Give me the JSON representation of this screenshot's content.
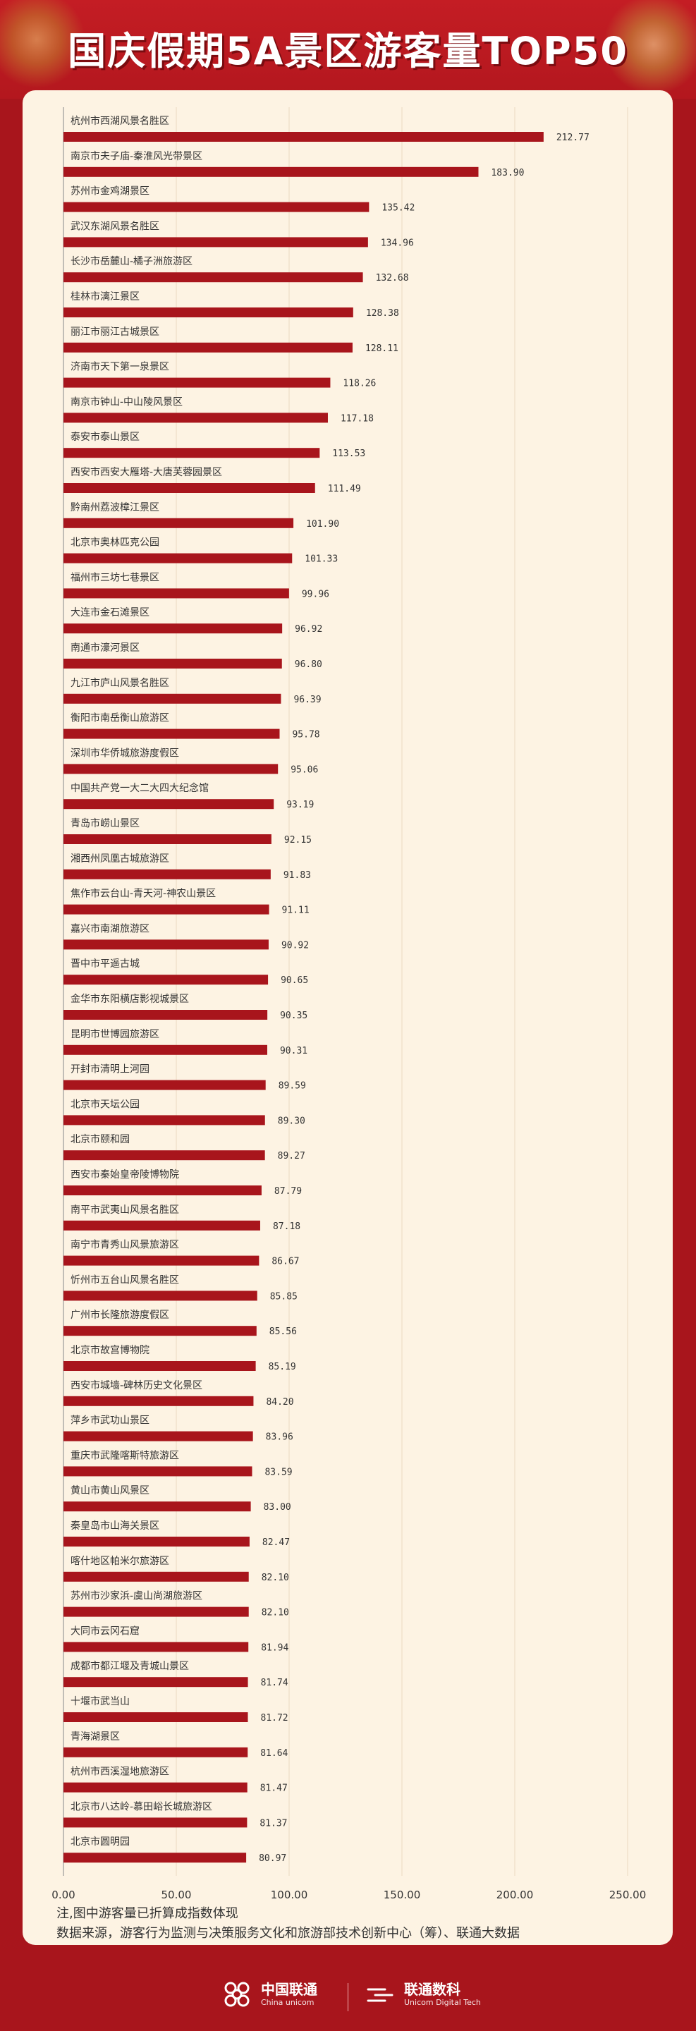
{
  "title": "国庆假期5A景区游客量TOP50",
  "notes": {
    "line1": "注,图中游客量已折算成指数体现",
    "line2": "数据来源，游客行为监测与决策服务文化和旅游部技术创新中心（筹）、联通大数据"
  },
  "footer": {
    "logo1_cn": "中国联通",
    "logo1_en": "China unicom",
    "logo2_cn": "联通数科",
    "logo2_en": "Unicom Digital Tech"
  },
  "colors": {
    "bar": "#a8151c",
    "background": "#a8151c",
    "panel": "#fdf3e3"
  },
  "chart_data": {
    "type": "bar",
    "orientation": "horizontal",
    "title": "国庆假期5A景区游客量TOP50",
    "xlim": [
      0,
      250
    ],
    "xticks": [
      "0.00",
      "50.00",
      "100.00",
      "150.00",
      "200.00",
      "250.00"
    ],
    "grid": "vertical",
    "categories": [
      "杭州市西湖风景名胜区",
      "南京市夫子庙-秦淮风光带景区",
      "苏州市金鸡湖景区",
      "武汉东湖风景名胜区",
      "长沙市岳麓山-橘子洲旅游区",
      "桂林市漓江景区",
      "丽江市丽江古城景区",
      "济南市天下第一泉景区",
      "南京市钟山-中山陵风景区",
      "泰安市泰山景区",
      "西安市西安大雁塔-大唐芙蓉园景区",
      "黔南州荔波樟江景区",
      "北京市奥林匹克公园",
      "福州市三坊七巷景区",
      "大连市金石滩景区",
      "南通市濠河景区",
      "九江市庐山风景名胜区",
      "衡阳市南岳衡山旅游区",
      "深圳市华侨城旅游度假区",
      "中国共产党一大二大四大纪念馆",
      "青岛市崂山景区",
      "湘西州凤凰古城旅游区",
      "焦作市云台山-青天河-神农山景区",
      "嘉兴市南湖旅游区",
      "晋中市平遥古城",
      "金华市东阳横店影视城景区",
      "昆明市世博园旅游区",
      "开封市清明上河园",
      "北京市天坛公园",
      "北京市颐和园",
      "西安市秦始皇帝陵博物院",
      "南平市武夷山风景名胜区",
      "南宁市青秀山风景旅游区",
      "忻州市五台山风景名胜区",
      "广州市长隆旅游度假区",
      "北京市故宫博物院",
      "西安市城墙-碑林历史文化景区",
      "萍乡市武功山景区",
      "重庆市武隆喀斯特旅游区",
      "黄山市黄山风景区",
      "秦皇岛市山海关景区",
      "喀什地区帕米尔旅游区",
      "苏州市沙家浜-虞山尚湖旅游区",
      "大同市云冈石窟",
      "成都市都江堰及青城山景区",
      "十堰市武当山",
      "青海湖景区",
      "杭州市西溪湿地旅游区",
      "北京市八达岭-慕田峪长城旅游区",
      "北京市圆明园"
    ],
    "values": [
      212.77,
      183.9,
      135.42,
      134.96,
      132.68,
      128.38,
      128.11,
      118.26,
      117.18,
      113.53,
      111.49,
      101.9,
      101.33,
      99.96,
      96.92,
      96.8,
      96.39,
      95.78,
      95.06,
      93.19,
      92.15,
      91.83,
      91.11,
      90.92,
      90.65,
      90.35,
      90.31,
      89.59,
      89.3,
      89.27,
      87.79,
      87.18,
      86.67,
      85.85,
      85.56,
      85.19,
      84.2,
      83.96,
      83.59,
      83.0,
      82.47,
      82.1,
      82.1,
      81.94,
      81.74,
      81.72,
      81.64,
      81.47,
      81.37,
      80.97
    ],
    "value_labels": [
      "212.77",
      "183.90",
      "135.42",
      "134.96",
      "132.68",
      "128.38",
      "128.11",
      "118.26",
      "117.18",
      "113.53",
      "111.49",
      "101.90",
      "101.33",
      "99.96",
      "96.92",
      "96.80",
      "96.39",
      "95.78",
      "95.06",
      "93.19",
      "92.15",
      "91.83",
      "91.11",
      "90.92",
      "90.65",
      "90.35",
      "90.31",
      "89.59",
      "89.30",
      "89.27",
      "87.79",
      "87.18",
      "86.67",
      "85.85",
      "85.56",
      "85.19",
      "84.20",
      "83.96",
      "83.59",
      "83.00",
      "82.47",
      "82.10",
      "82.10",
      "81.94",
      "81.74",
      "81.72",
      "81.64",
      "81.47",
      "81.37",
      "80.97"
    ]
  }
}
